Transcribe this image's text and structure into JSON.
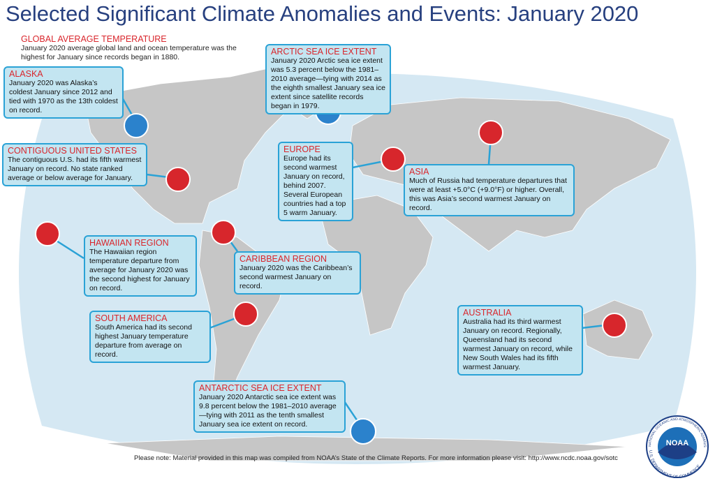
{
  "title": "Selected Significant Climate Anomalies and Events: January 2020",
  "global": {
    "title": "GLOBAL AVERAGE TEMPERATURE",
    "text": "January 2020 average global land and ocean temperature was the highest for January since records began in 1880."
  },
  "callouts": [
    {
      "title": "ALASKA",
      "text": "January 2020 was Alaska’s coldest January since 2012 and tied with 1970 as the 13th coldest on record."
    },
    {
      "title": "ARCTIC SEA ICE EXTENT",
      "text": "January 2020 Arctic sea ice extent was 5.3 percent below the 1981–2010 average—tying with 2014 as the eighth smallest January sea ice extent since satellite records began in 1979."
    },
    {
      "title": "CONTIGUOUS UNITED STATES",
      "text": "The contiguous U.S. had its fifth warmest January on record. No state ranked average or below average for January."
    },
    {
      "title": "EUROPE",
      "text": "Europe had its second warmest January on record, behind 2007. Several European countries had a top 5 warm January."
    },
    {
      "title": "ASIA",
      "text": "Much of Russia had temperature departures that were at least +5.0°C (+9.0°F) or higher. Overall, this was Asia’s second warmest January on record."
    },
    {
      "title": "HAWAIIAN REGION",
      "text": "The Hawaiian region temperature departure from average for January 2020 was the second highest for January on record."
    },
    {
      "title": "CARIBBEAN REGION",
      "text": "January 2020 was the Caribbean’s second warmest January on record."
    },
    {
      "title": "SOUTH AMERICA",
      "text": "South America had its second highest January temperature departure from average on record."
    },
    {
      "title": "AUSTRALIA",
      "text": "Australia had its third warmest January on record. Regionally, Queensland had its second warmest January on record, while New South Wales had its fifth warmest January."
    },
    {
      "title": "ANTARCTIC SEA ICE EXTENT",
      "text": "January 2020 Antarctic sea ice extent was 9.8 percent below the 1981–2010 average—tying with 2011 as the tenth smallest January sea ice extent on record."
    }
  ],
  "footer": "Please note: Material provided in this map was compiled from NOAA’s State of the Climate Reports. For more information please visit: http://www.ncdc.noaa.gov/sotc",
  "logo": {
    "name": "NOAA",
    "agency": "NATIONAL OCEANIC AND ATMOSPHERIC ADMINISTRATION",
    "department": "U.S. DEPARTMENT OF COMMERCE"
  }
}
